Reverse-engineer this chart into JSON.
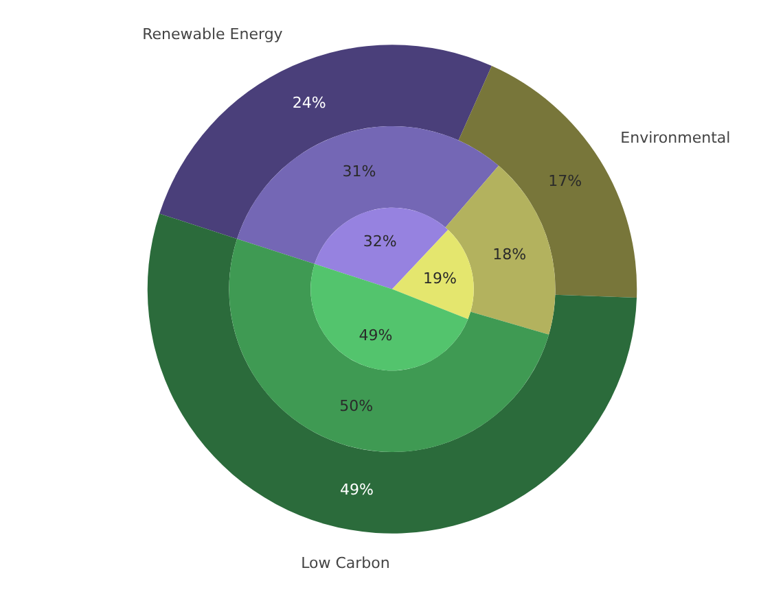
{
  "chart_data": {
    "type": "pie",
    "categories": [
      "Renewable Energy",
      "Environmental",
      "Low Carbon"
    ],
    "series": [
      {
        "values": [
          24,
          17,
          49
        ],
        "colors": [
          "#4a3f7a",
          "#78763a",
          "#2b6b3b"
        ],
        "value_labels": [
          "24%",
          "17%",
          "49%"
        ]
      },
      {
        "values": [
          31,
          18,
          50
        ],
        "colors": [
          "#7467b5",
          "#b3b25e",
          "#3f9a53"
        ],
        "value_labels": [
          "31%",
          "18%",
          "50%"
        ]
      },
      {
        "values": [
          32,
          19,
          49
        ],
        "colors": [
          "#9682e0",
          "#e4e66e",
          "#53c46d"
        ],
        "value_labels": [
          "32%",
          "19%",
          "49%"
        ]
      }
    ]
  }
}
